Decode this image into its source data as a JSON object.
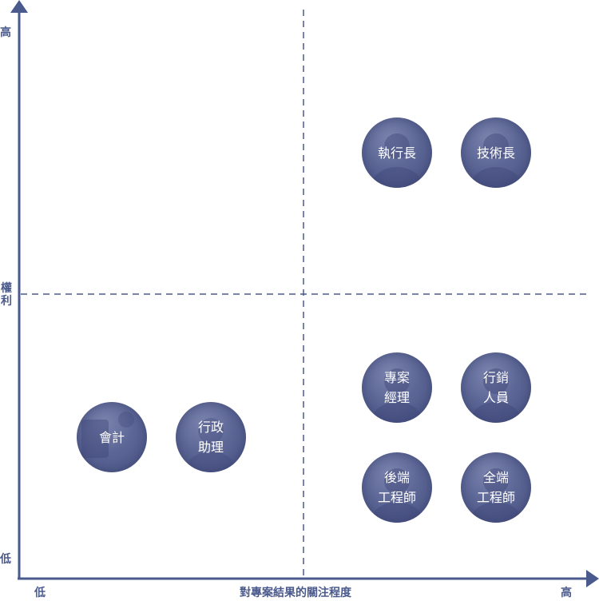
{
  "colors": {
    "axis": "#4a5a8c",
    "divider": "#4a5a8c",
    "node": "#5d6796",
    "node_text": "#ffffff"
  },
  "y_axis": {
    "high_label": "高",
    "title": "權利",
    "low_label": "低"
  },
  "x_axis": {
    "low_label": "低",
    "title": "對專案結果的關注程度",
    "high_label": "高"
  },
  "stakeholders": [
    {
      "id": "ceo",
      "lines": [
        "執行長"
      ],
      "icon": "person-photo-icon"
    },
    {
      "id": "cto",
      "lines": [
        "技術長"
      ],
      "icon": "person-photo-icon"
    },
    {
      "id": "pm",
      "lines": [
        "專案",
        "經理"
      ],
      "icon": "person-photo-icon"
    },
    {
      "id": "marketing",
      "lines": [
        "行銷",
        "人員"
      ],
      "icon": "person-photo-icon"
    },
    {
      "id": "accounting",
      "lines": [
        "會計"
      ],
      "icon": "calculator-photo-icon"
    },
    {
      "id": "admin-assistant",
      "lines": [
        "行政",
        "助理"
      ],
      "icon": "person-photo-icon"
    },
    {
      "id": "backend-engineer",
      "lines": [
        "後端",
        "工程師"
      ],
      "icon": "person-photo-icon"
    },
    {
      "id": "fullstack-engineer",
      "lines": [
        "全端",
        "工程師"
      ],
      "icon": "person-photo-icon"
    }
  ]
}
